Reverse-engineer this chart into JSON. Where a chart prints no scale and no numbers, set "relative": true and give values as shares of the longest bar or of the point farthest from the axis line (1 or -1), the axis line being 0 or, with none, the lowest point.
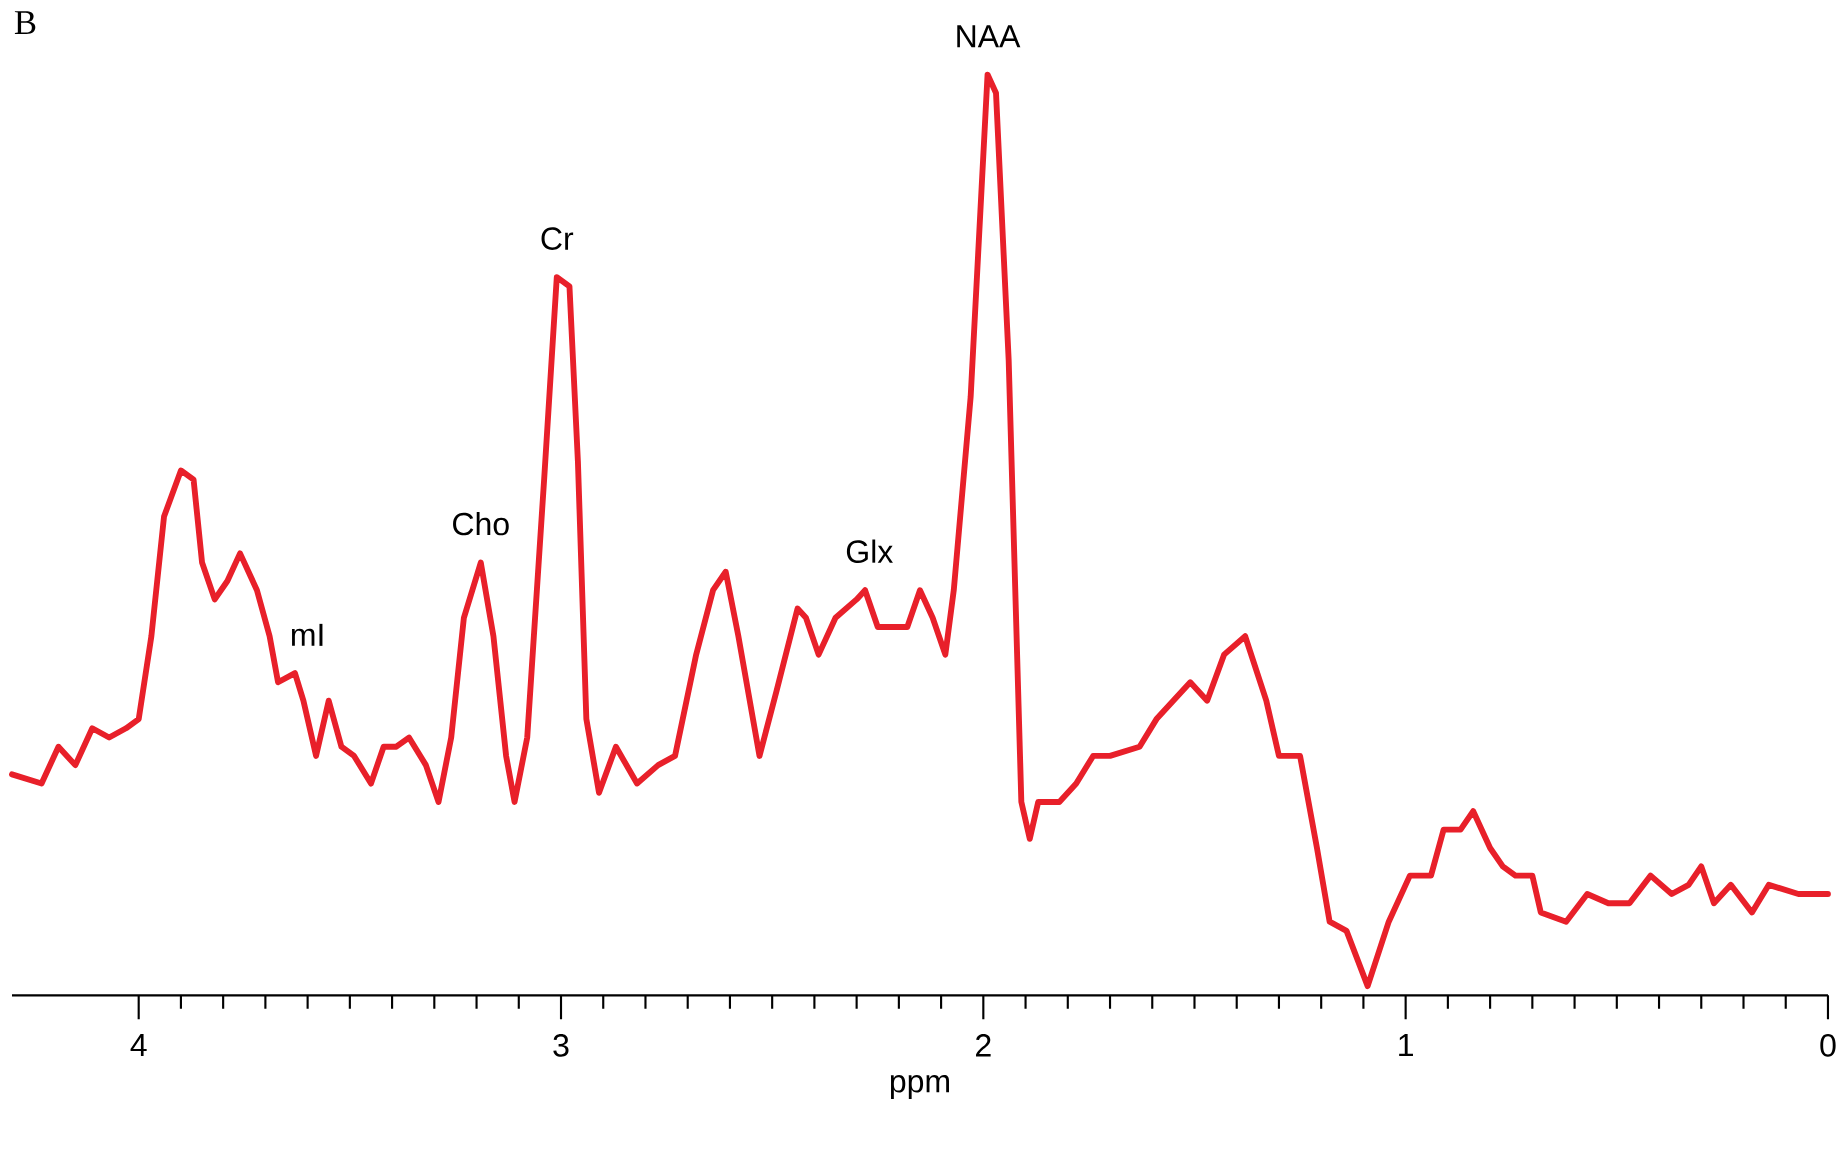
{
  "chart_data": {
    "type": "line",
    "relative": true,
    "color": "#e8202a",
    "xlabel": "ppm",
    "xlim": [
      4.3,
      0
    ],
    "xticks": [
      4,
      3,
      2,
      1,
      0
    ],
    "x": [
      4.3,
      4.23,
      4.19,
      4.15,
      4.11,
      4.07,
      4.03,
      4.0,
      3.97,
      3.94,
      3.9,
      3.87,
      3.85,
      3.82,
      3.79,
      3.76,
      3.72,
      3.69,
      3.67,
      3.63,
      3.61,
      3.58,
      3.55,
      3.52,
      3.49,
      3.45,
      3.42,
      3.39,
      3.36,
      3.32,
      3.29,
      3.26,
      3.23,
      3.19,
      3.16,
      3.13,
      3.11,
      3.08,
      3.04,
      3.01,
      2.98,
      2.96,
      2.94,
      2.91,
      2.87,
      2.82,
      2.77,
      2.73,
      2.68,
      2.64,
      2.61,
      2.58,
      2.53,
      2.49,
      2.44,
      2.42,
      2.39,
      2.35,
      2.3,
      2.28,
      2.25,
      2.22,
      2.18,
      2.15,
      2.12,
      2.09,
      2.07,
      2.03,
      1.99,
      1.97,
      1.94,
      1.91,
      1.89,
      1.87,
      1.82,
      1.78,
      1.74,
      1.7,
      1.63,
      1.59,
      1.51,
      1.47,
      1.43,
      1.38,
      1.33,
      1.3,
      1.25,
      1.21,
      1.18,
      1.14,
      1.09,
      1.04,
      0.99,
      0.94,
      0.91,
      0.87,
      0.84,
      0.8,
      0.77,
      0.74,
      0.7,
      0.68,
      0.62,
      0.57,
      0.52,
      0.47,
      0.42,
      0.37,
      0.33,
      0.3,
      0.27,
      0.23,
      0.18,
      0.14,
      0.07,
      0.0
    ],
    "values": [
      0.24,
      0.23,
      0.27,
      0.25,
      0.29,
      0.28,
      0.29,
      0.3,
      0.39,
      0.52,
      0.57,
      0.56,
      0.47,
      0.43,
      0.45,
      0.48,
      0.44,
      0.39,
      0.34,
      0.35,
      0.32,
      0.26,
      0.32,
      0.27,
      0.26,
      0.23,
      0.27,
      0.27,
      0.28,
      0.25,
      0.21,
      0.28,
      0.41,
      0.47,
      0.39,
      0.26,
      0.21,
      0.28,
      0.56,
      0.78,
      0.77,
      0.58,
      0.3,
      0.22,
      0.27,
      0.23,
      0.25,
      0.26,
      0.37,
      0.44,
      0.46,
      0.39,
      0.26,
      0.33,
      0.42,
      0.41,
      0.37,
      0.41,
      0.43,
      0.44,
      0.4,
      0.4,
      0.4,
      0.44,
      0.41,
      0.37,
      0.44,
      0.65,
      1.0,
      0.98,
      0.69,
      0.21,
      0.17,
      0.21,
      0.21,
      0.23,
      0.26,
      0.26,
      0.27,
      0.3,
      0.34,
      0.32,
      0.37,
      0.39,
      0.32,
      0.26,
      0.26,
      0.16,
      0.08,
      0.07,
      0.01,
      0.08,
      0.13,
      0.13,
      0.18,
      0.18,
      0.2,
      0.16,
      0.14,
      0.13,
      0.13,
      0.09,
      0.08,
      0.11,
      0.1,
      0.1,
      0.13,
      0.11,
      0.12,
      0.14,
      0.1,
      0.12,
      0.09,
      0.12,
      0.11,
      0.11
    ],
    "annotations": [
      "B",
      {
        "text": "mI",
        "x": 3.6,
        "y": 0.35
      },
      {
        "text": "Cho",
        "x": 3.19,
        "y": 0.47
      },
      {
        "text": "Cr",
        "x": 3.01,
        "y": 0.78
      },
      {
        "text": "Glx",
        "x": 2.27,
        "y": 0.44
      },
      {
        "text": "NAA",
        "x": 1.99,
        "y": 1.0
      }
    ]
  }
}
